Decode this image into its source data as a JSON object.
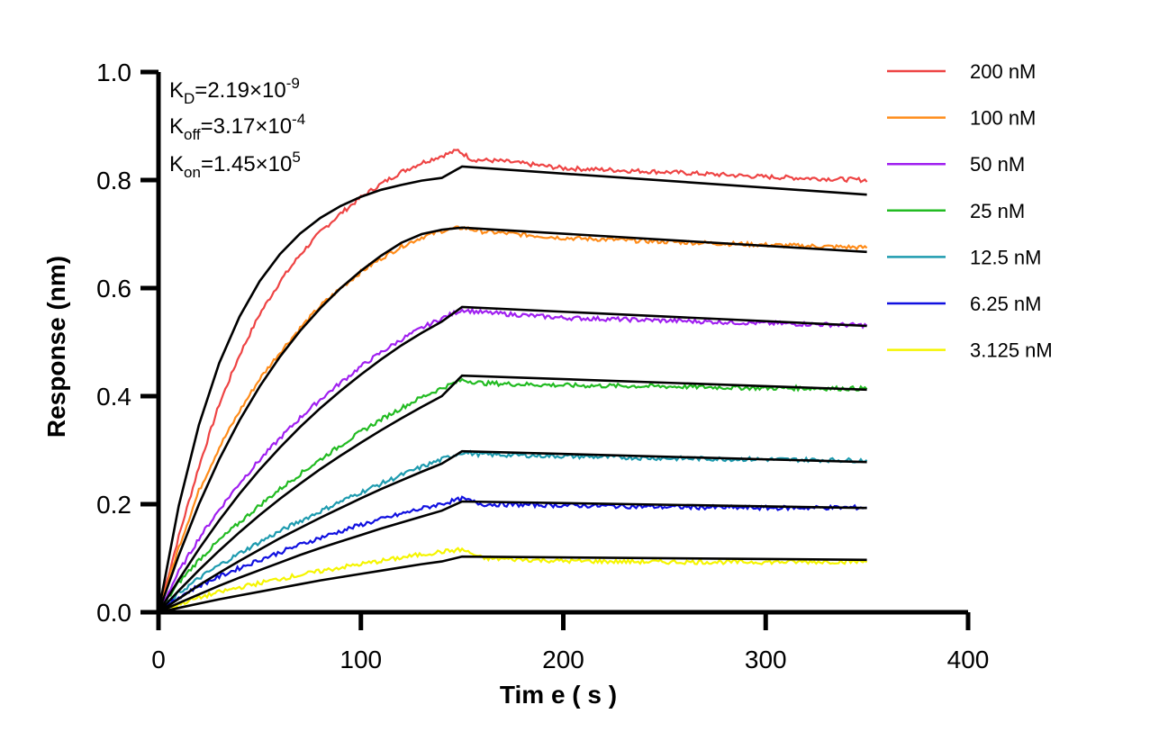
{
  "chart_data": {
    "type": "line",
    "title": "",
    "xlabel": "Tim e ( s )",
    "ylabel": "Response (nm)",
    "xlim": [
      0,
      400
    ],
    "ylim": [
      0,
      1.0
    ],
    "x_ticks": [
      "0",
      "100",
      "200",
      "300",
      "400"
    ],
    "y_ticks": [
      "0.0",
      "0.2",
      "0.4",
      "0.6",
      "0.8",
      "1.0"
    ],
    "grid": false,
    "legend_position": "top-right",
    "association_end": 150,
    "dissociation_end": 350,
    "annotations": {
      "kd": {
        "label": "K",
        "sub": "D",
        "eq": "=2.19×10",
        "exp": "-9"
      },
      "koff": {
        "label": "K",
        "sub": "off",
        "eq": "=3.17×10",
        "exp": "-4"
      },
      "kon": {
        "label": "K",
        "sub": "on",
        "eq": "=1.45×10",
        "exp": "5"
      }
    },
    "fit_color": "#000000",
    "series": [
      {
        "name": "200 nM",
        "color": "#ee4444",
        "fit_start": [
          [
            0,
            0
          ],
          [
            10,
            0.197
          ],
          [
            20,
            0.347
          ],
          [
            30,
            0.461
          ],
          [
            40,
            0.547
          ],
          [
            50,
            0.613
          ],
          [
            60,
            0.663
          ],
          [
            70,
            0.701
          ],
          [
            80,
            0.73
          ],
          [
            90,
            0.752
          ],
          [
            100,
            0.769
          ],
          [
            110,
            0.782
          ],
          [
            120,
            0.791
          ],
          [
            130,
            0.799
          ],
          [
            140,
            0.804
          ],
          [
            150,
            0.825
          ]
        ],
        "fit_end": 0.773,
        "data": [
          [
            0,
            0
          ],
          [
            10,
            0.14
          ],
          [
            20,
            0.27
          ],
          [
            30,
            0.385
          ],
          [
            40,
            0.476
          ],
          [
            50,
            0.552
          ],
          [
            60,
            0.612
          ],
          [
            70,
            0.662
          ],
          [
            80,
            0.704
          ],
          [
            90,
            0.738
          ],
          [
            100,
            0.768
          ],
          [
            110,
            0.793
          ],
          [
            120,
            0.815
          ],
          [
            130,
            0.832
          ],
          [
            140,
            0.845
          ],
          [
            148,
            0.855
          ],
          [
            155,
            0.838
          ],
          [
            170,
            0.835
          ],
          [
            200,
            0.822
          ],
          [
            250,
            0.815
          ],
          [
            300,
            0.806
          ],
          [
            350,
            0.8
          ]
        ]
      },
      {
        "name": "100 nM",
        "color": "#ff8c1a",
        "fit_start": [
          [
            0,
            0
          ],
          [
            10,
            0.105
          ],
          [
            20,
            0.2
          ],
          [
            30,
            0.283
          ],
          [
            40,
            0.355
          ],
          [
            50,
            0.418
          ],
          [
            60,
            0.473
          ],
          [
            70,
            0.521
          ],
          [
            80,
            0.563
          ],
          [
            90,
            0.6
          ],
          [
            100,
            0.632
          ],
          [
            110,
            0.66
          ],
          [
            120,
            0.684
          ],
          [
            130,
            0.7
          ],
          [
            140,
            0.708
          ],
          [
            150,
            0.712
          ]
        ],
        "fit_end": 0.667,
        "data": [
          [
            0,
            0
          ],
          [
            10,
            0.12
          ],
          [
            20,
            0.225
          ],
          [
            30,
            0.305
          ],
          [
            40,
            0.372
          ],
          [
            50,
            0.432
          ],
          [
            60,
            0.481
          ],
          [
            70,
            0.526
          ],
          [
            80,
            0.567
          ],
          [
            90,
            0.6
          ],
          [
            100,
            0.63
          ],
          [
            110,
            0.655
          ],
          [
            120,
            0.677
          ],
          [
            130,
            0.694
          ],
          [
            140,
            0.706
          ],
          [
            150,
            0.712
          ],
          [
            160,
            0.705
          ],
          [
            200,
            0.693
          ],
          [
            250,
            0.686
          ],
          [
            300,
            0.68
          ],
          [
            350,
            0.675
          ]
        ]
      },
      {
        "name": "50 nM",
        "color": "#a020f0",
        "fit_start": [
          [
            0,
            0
          ],
          [
            10,
            0.06
          ],
          [
            20,
            0.117
          ],
          [
            30,
            0.17
          ],
          [
            40,
            0.219
          ],
          [
            50,
            0.264
          ],
          [
            60,
            0.305
          ],
          [
            70,
            0.343
          ],
          [
            80,
            0.378
          ],
          [
            90,
            0.41
          ],
          [
            100,
            0.44
          ],
          [
            110,
            0.468
          ],
          [
            120,
            0.494
          ],
          [
            130,
            0.517
          ],
          [
            140,
            0.538
          ],
          [
            150,
            0.565
          ]
        ],
        "fit_end": 0.53,
        "data": [
          [
            0,
            0
          ],
          [
            10,
            0.075
          ],
          [
            20,
            0.137
          ],
          [
            30,
            0.19
          ],
          [
            40,
            0.239
          ],
          [
            50,
            0.282
          ],
          [
            60,
            0.322
          ],
          [
            70,
            0.36
          ],
          [
            80,
            0.394
          ],
          [
            90,
            0.425
          ],
          [
            100,
            0.455
          ],
          [
            110,
            0.481
          ],
          [
            120,
            0.505
          ],
          [
            130,
            0.526
          ],
          [
            140,
            0.544
          ],
          [
            150,
            0.56
          ],
          [
            160,
            0.555
          ],
          [
            200,
            0.545
          ],
          [
            250,
            0.54
          ],
          [
            300,
            0.535
          ],
          [
            350,
            0.531
          ]
        ]
      },
      {
        "name": "25 nM",
        "color": "#22bb22",
        "fit_start": [
          [
            0,
            0
          ],
          [
            10,
            0.04
          ],
          [
            20,
            0.078
          ],
          [
            30,
            0.114
          ],
          [
            40,
            0.148
          ],
          [
            50,
            0.18
          ],
          [
            60,
            0.21
          ],
          [
            70,
            0.238
          ],
          [
            80,
            0.265
          ],
          [
            90,
            0.29
          ],
          [
            100,
            0.314
          ],
          [
            110,
            0.337
          ],
          [
            120,
            0.359
          ],
          [
            130,
            0.38
          ],
          [
            140,
            0.4
          ],
          [
            150,
            0.438
          ]
        ],
        "fit_end": 0.412,
        "data": [
          [
            0,
            0
          ],
          [
            10,
            0.055
          ],
          [
            20,
            0.097
          ],
          [
            30,
            0.133
          ],
          [
            40,
            0.166
          ],
          [
            50,
            0.198
          ],
          [
            60,
            0.228
          ],
          [
            70,
            0.256
          ],
          [
            80,
            0.283
          ],
          [
            90,
            0.309
          ],
          [
            100,
            0.334
          ],
          [
            110,
            0.357
          ],
          [
            120,
            0.378
          ],
          [
            130,
            0.398
          ],
          [
            140,
            0.415
          ],
          [
            150,
            0.43
          ],
          [
            160,
            0.424
          ],
          [
            200,
            0.42
          ],
          [
            250,
            0.418
          ],
          [
            300,
            0.415
          ],
          [
            350,
            0.414
          ]
        ]
      },
      {
        "name": "12.5 nM",
        "color": "#1e9baf",
        "fit_start": [
          [
            0,
            0
          ],
          [
            10,
            0.025
          ],
          [
            20,
            0.05
          ],
          [
            30,
            0.073
          ],
          [
            40,
            0.095
          ],
          [
            50,
            0.116
          ],
          [
            60,
            0.137
          ],
          [
            70,
            0.156
          ],
          [
            80,
            0.175
          ],
          [
            90,
            0.193
          ],
          [
            100,
            0.211
          ],
          [
            110,
            0.228
          ],
          [
            120,
            0.244
          ],
          [
            130,
            0.26
          ],
          [
            140,
            0.275
          ],
          [
            150,
            0.298
          ]
        ],
        "fit_end": 0.278,
        "data": [
          [
            0,
            0
          ],
          [
            10,
            0.035
          ],
          [
            20,
            0.063
          ],
          [
            30,
            0.087
          ],
          [
            40,
            0.109
          ],
          [
            50,
            0.13
          ],
          [
            60,
            0.15
          ],
          [
            70,
            0.169
          ],
          [
            80,
            0.187
          ],
          [
            90,
            0.205
          ],
          [
            100,
            0.222
          ],
          [
            110,
            0.238
          ],
          [
            120,
            0.254
          ],
          [
            130,
            0.269
          ],
          [
            140,
            0.283
          ],
          [
            150,
            0.296
          ],
          [
            160,
            0.292
          ],
          [
            200,
            0.289
          ],
          [
            250,
            0.285
          ],
          [
            300,
            0.283
          ],
          [
            350,
            0.281
          ]
        ]
      },
      {
        "name": "6.25 nM",
        "color": "#1010e0",
        "fit_start": [
          [
            0,
            0
          ],
          [
            10,
            0.017
          ],
          [
            20,
            0.033
          ],
          [
            30,
            0.049
          ],
          [
            40,
            0.064
          ],
          [
            50,
            0.078
          ],
          [
            60,
            0.092
          ],
          [
            70,
            0.106
          ],
          [
            80,
            0.119
          ],
          [
            90,
            0.131
          ],
          [
            100,
            0.143
          ],
          [
            110,
            0.155
          ],
          [
            120,
            0.166
          ],
          [
            130,
            0.177
          ],
          [
            140,
            0.188
          ],
          [
            150,
            0.205
          ]
        ],
        "fit_end": 0.193,
        "data": [
          [
            0,
            0
          ],
          [
            10,
            0.028
          ],
          [
            20,
            0.049
          ],
          [
            30,
            0.066
          ],
          [
            40,
            0.082
          ],
          [
            50,
            0.097
          ],
          [
            60,
            0.111
          ],
          [
            70,
            0.125
          ],
          [
            80,
            0.138
          ],
          [
            90,
            0.15
          ],
          [
            100,
            0.162
          ],
          [
            110,
            0.172
          ],
          [
            120,
            0.182
          ],
          [
            130,
            0.192
          ],
          [
            140,
            0.201
          ],
          [
            150,
            0.21
          ],
          [
            160,
            0.2
          ],
          [
            200,
            0.198
          ],
          [
            250,
            0.195
          ],
          [
            300,
            0.193
          ],
          [
            350,
            0.194
          ]
        ]
      },
      {
        "name": "3.125 nM",
        "color": "#f5f500",
        "fit_start": [
          [
            0,
            0
          ],
          [
            10,
            0.008
          ],
          [
            20,
            0.016
          ],
          [
            30,
            0.024
          ],
          [
            40,
            0.031
          ],
          [
            50,
            0.038
          ],
          [
            60,
            0.045
          ],
          [
            70,
            0.052
          ],
          [
            80,
            0.059
          ],
          [
            90,
            0.065
          ],
          [
            100,
            0.071
          ],
          [
            110,
            0.077
          ],
          [
            120,
            0.083
          ],
          [
            130,
            0.089
          ],
          [
            140,
            0.094
          ],
          [
            150,
            0.103
          ]
        ],
        "fit_end": 0.097,
        "data": [
          [
            0,
            0
          ],
          [
            10,
            0.015
          ],
          [
            20,
            0.027
          ],
          [
            30,
            0.037
          ],
          [
            40,
            0.046
          ],
          [
            50,
            0.054
          ],
          [
            60,
            0.062
          ],
          [
            70,
            0.069
          ],
          [
            80,
            0.076
          ],
          [
            90,
            0.083
          ],
          [
            100,
            0.089
          ],
          [
            110,
            0.095
          ],
          [
            120,
            0.101
          ],
          [
            130,
            0.107
          ],
          [
            140,
            0.112
          ],
          [
            150,
            0.116
          ],
          [
            160,
            0.1
          ],
          [
            200,
            0.095
          ],
          [
            250,
            0.093
          ],
          [
            300,
            0.093
          ],
          [
            350,
            0.094
          ]
        ]
      }
    ]
  }
}
